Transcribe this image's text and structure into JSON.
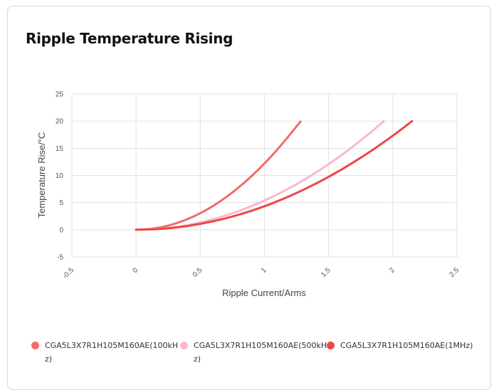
{
  "chart_data": {
    "type": "line",
    "title": "Ripple Temperature Rising",
    "xlabel": "Ripple Current/Arms",
    "ylabel": "Temperature Rise/°C",
    "xlim": [
      -0.5,
      2.5
    ],
    "ylim": [
      -5,
      25
    ],
    "xticks": [
      -0.5,
      0,
      0.5,
      1,
      1.5,
      2,
      2.5
    ],
    "xtick_labels": [
      "-0.5",
      "0",
      "0.5",
      "1",
      "1.5",
      "2",
      "2.5"
    ],
    "yticks": [
      -5,
      0,
      5,
      10,
      15,
      20,
      25
    ],
    "ytick_labels": [
      "-5",
      "0",
      "5",
      "10",
      "15",
      "20",
      "25"
    ],
    "grid": true,
    "legend_position": "bottom",
    "series": [
      {
        "name": "CGA5L3X7R1H105M160AE(100kHz)",
        "color": "#f26b6b",
        "x": [
          0,
          0.1,
          0.2,
          0.3,
          0.4,
          0.5,
          0.6,
          0.7,
          0.8,
          0.9,
          1.0,
          1.1,
          1.2,
          1.28
        ],
        "y": [
          0,
          0.12,
          0.49,
          1.1,
          1.95,
          3.05,
          4.39,
          5.98,
          7.81,
          9.88,
          12.2,
          14.76,
          17.57,
          19.9
        ]
      },
      {
        "name": "CGA5L3X7R1H105M160AE(500kHz)",
        "color": "#f9b8cd",
        "x": [
          0,
          0.2,
          0.4,
          0.6,
          0.8,
          1.0,
          1.2,
          1.4,
          1.6,
          1.8,
          1.93
        ],
        "y": [
          0,
          0.21,
          0.86,
          1.93,
          3.44,
          5.37,
          7.73,
          10.52,
          13.74,
          17.39,
          20.0
        ]
      },
      {
        "name": "CGA5L3X7R1H105M160AE(1MHz)",
        "color": "#ef4646",
        "x": [
          0,
          0.2,
          0.4,
          0.6,
          0.8,
          1.0,
          1.2,
          1.4,
          1.6,
          1.8,
          2.0,
          2.15
        ],
        "y": [
          0,
          0.17,
          0.69,
          1.56,
          2.77,
          4.33,
          6.23,
          8.48,
          11.08,
          14.02,
          17.31,
          20.0
        ]
      }
    ]
  }
}
